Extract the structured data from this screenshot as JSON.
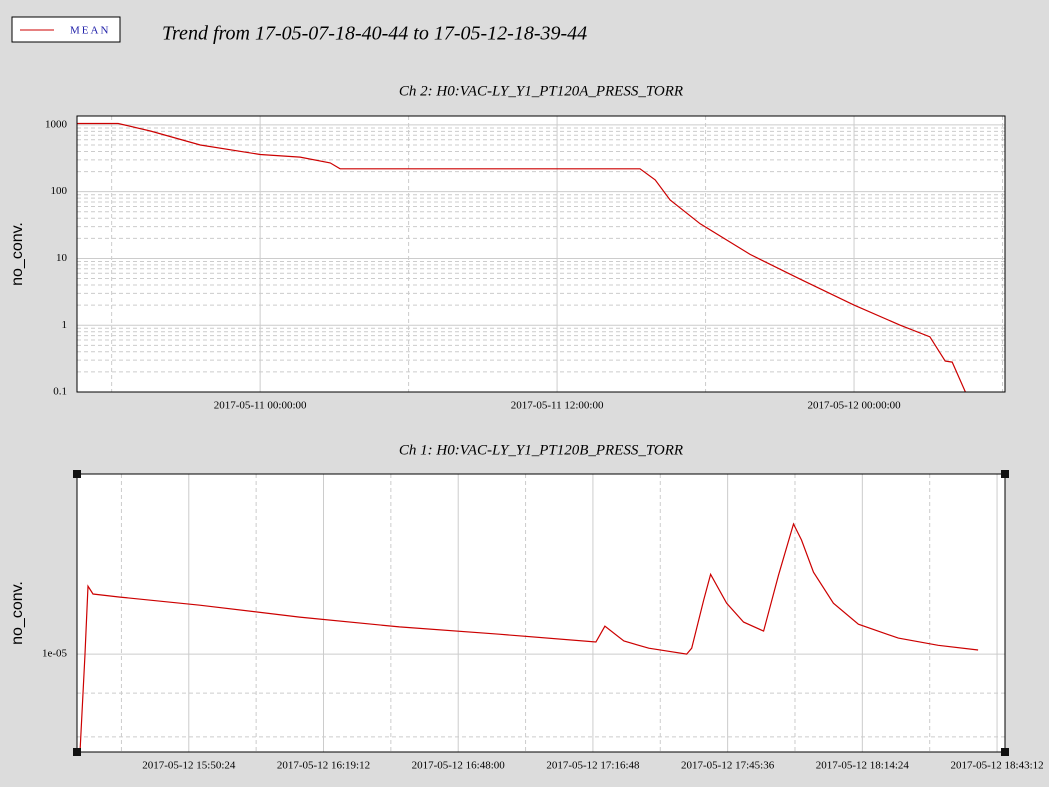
{
  "title": "Trend from 17-05-07-18-40-44 to 17-05-12-18-39-44",
  "chart_data": [
    {
      "type": "line",
      "title": "Ch 2: H0:VAC-LY_Y1_PT120A_PRESS_TORR",
      "ylabel": "no_conv.",
      "log_y": true,
      "grid": true,
      "x": [
        "2017-05-10 16:36:00",
        "2017-05-10 18:16:00",
        "2017-05-10 19:34:00",
        "2017-05-10 21:35:00",
        "2017-05-11 00:00:00",
        "2017-05-11 01:37:00",
        "2017-05-11 02:50:00",
        "2017-05-11 03:14:00",
        "2017-05-11 15:21:00",
        "2017-05-11 15:58:00",
        "2017-05-11 16:34:00",
        "2017-05-11 17:47:00",
        "2017-05-11 19:48:00",
        "2017-05-11 21:49:00",
        "2017-05-12 00:00:00",
        "2017-05-12 01:52:00",
        "2017-05-12 03:04:00",
        "2017-05-12 03:41:00",
        "2017-05-12 03:58:00",
        "2017-05-12 04:30:00"
      ],
      "series": [
        {
          "name": "MEAN",
          "color": "#cc0000",
          "values": [
            1050,
            1050,
            810,
            500,
            360,
            330,
            270,
            220,
            220,
            150,
            75,
            33,
            11.5,
            4.9,
            2.0,
            1.0,
            0.67,
            0.29,
            0.28,
            0.1
          ]
        }
      ],
      "xlim": [
        "2017-05-10 16:36:00",
        "2017-05-12 06:06:00"
      ],
      "xticks": [
        "2017-05-11 00:00:00",
        "2017-05-11 12:00:00",
        "2017-05-12 00:00:00"
      ],
      "ylim": [
        0.1,
        1360
      ],
      "yticks": [
        0.1,
        1,
        10,
        100,
        1000
      ]
    },
    {
      "type": "line",
      "title": "Ch 1: H0:VAC-LY_Y1_PT120B_PRESS_TORR",
      "ylabel": "no_conv.",
      "log_y": true,
      "grid": true,
      "x": [
        "2017-05-12 15:27:09",
        "2017-05-12 15:28:13",
        "2017-05-12 15:28:51",
        "2017-05-12 15:29:55",
        "2017-05-12 15:35:41",
        "2017-05-12 15:52:45",
        "2017-05-12 16:14:05",
        "2017-05-12 16:35:25",
        "2017-05-12 16:56:45",
        "2017-05-12 17:17:26",
        "2017-05-12 17:19:22",
        "2017-05-12 17:23:25",
        "2017-05-12 17:28:45",
        "2017-05-12 17:36:51",
        "2017-05-12 17:37:55",
        "2017-05-12 17:40:29",
        "2017-05-12 17:41:58",
        "2017-05-12 17:45:23",
        "2017-05-12 17:49:01",
        "2017-05-12 17:53:17",
        "2017-05-12 17:56:29",
        "2017-05-12 17:59:41",
        "2017-05-12 18:01:23",
        "2017-05-12 18:03:57",
        "2017-05-12 18:08:13",
        "2017-05-12 18:13:33",
        "2017-05-12 18:22:05",
        "2017-05-12 18:30:37",
        "2017-05-12 18:39:09"
      ],
      "series": [
        {
          "name": "MEAN",
          "color": "#cc0000",
          "values": [
            7.68e-06,
            1e-05,
            1.201e-05,
            1.176e-05,
            1.166e-05,
            1.141e-05,
            1.105e-05,
            1.076e-05,
            1.055e-05,
            1.033e-05,
            1.078e-05,
            1.036e-05,
            1.016e-05,
            1e-05,
            1.016e-05,
            1.157e-05,
            1.24e-05,
            1.147e-05,
            1.09e-05,
            1.064e-05,
            1.237e-05,
            1.42e-05,
            1.36e-05,
            1.247e-05,
            1.147e-05,
            1.084e-05,
            1.044e-05,
            1.024e-05,
            1.011e-05
          ]
        }
      ],
      "xlim": [
        "2017-05-12 15:26:30",
        "2017-05-12 18:44:54"
      ],
      "xticks": [
        "2017-05-12 15:50:24",
        "2017-05-12 16:19:12",
        "2017-05-12 16:48:00",
        "2017-05-12 17:16:48",
        "2017-05-12 17:45:36",
        "2017-05-12 18:14:24",
        "2017-05-12 18:43:12"
      ],
      "ylim": [
        7.68e-06,
        1.625e-05
      ],
      "yticks": [
        {
          "value": 1e-05,
          "label": "1e-05"
        }
      ]
    }
  ]
}
